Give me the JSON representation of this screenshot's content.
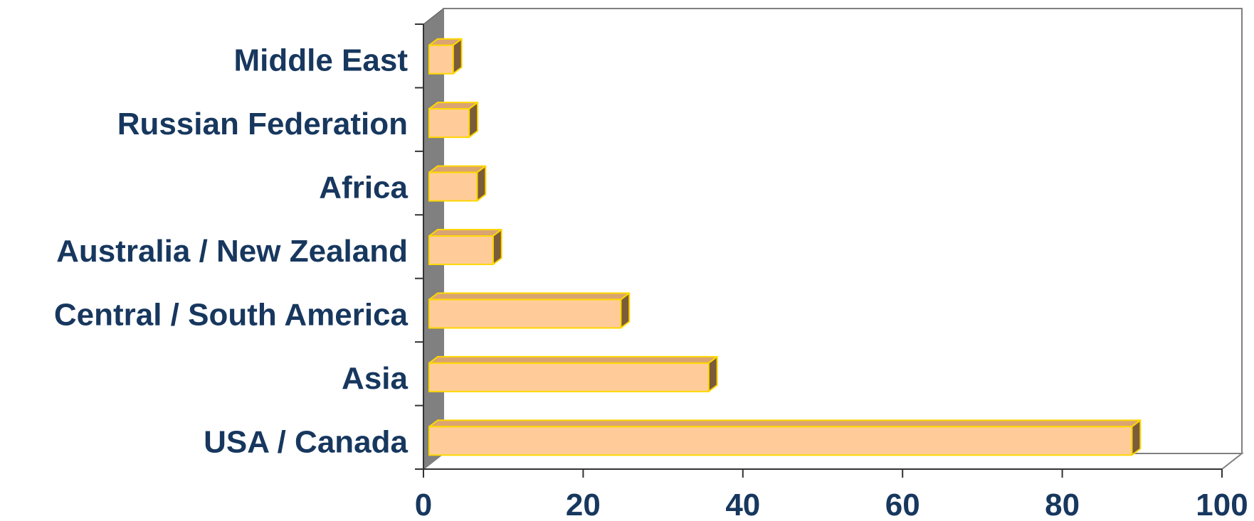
{
  "chart_data": {
    "type": "bar",
    "orientation": "horizontal",
    "style": "3d",
    "title": "",
    "xlabel": "",
    "ylabel": "",
    "categories": [
      "USA / Canada",
      "Asia",
      "Central / South America",
      "Australia / New Zealand",
      "Africa",
      "Russian Federation",
      "Middle East"
    ],
    "values": [
      88,
      35,
      24,
      8,
      6,
      5,
      3
    ],
    "xlim": [
      0,
      100
    ],
    "xticks": [
      "0",
      "20",
      "40",
      "60",
      "80",
      "100"
    ],
    "grid": false,
    "legend": "none",
    "colors": {
      "bar_front": "#ffcc99",
      "bar_top": "#d9a472",
      "bar_side": "#7a5c3a",
      "bar_edge": "#ffd700",
      "wall": "#808080",
      "text": "#17375e"
    }
  }
}
